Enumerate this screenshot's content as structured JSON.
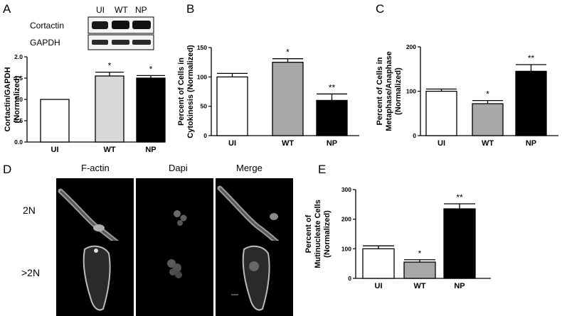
{
  "panels": {
    "A": {
      "letter": "A",
      "blot": {
        "lanes": [
          "UI",
          "WT",
          "NP"
        ],
        "bands": [
          "Cortactin",
          "GAPDH"
        ]
      },
      "chart": {
        "type": "bar",
        "categories": [
          "UI",
          "WT",
          "NP"
        ],
        "values": [
          1.0,
          1.55,
          1.5
        ],
        "errors": [
          0,
          0.09,
          0.06
        ],
        "fills": [
          "#ffffff",
          "#d8d8d8",
          "#000000"
        ],
        "significance": [
          "",
          "*",
          "*"
        ],
        "ylabel_lines": [
          "Cortactin/GAPDH",
          "(Normalized)"
        ],
        "ylim": [
          0,
          2.0
        ],
        "yticks": [
          "0.0",
          "0.5",
          "1.0",
          "1.5",
          "2.0"
        ]
      }
    },
    "B": {
      "letter": "B",
      "chart": {
        "type": "bar",
        "categories": [
          "UI",
          "WT",
          "NP"
        ],
        "values": [
          100,
          125,
          60
        ],
        "errors": [
          6,
          6,
          11
        ],
        "fills": [
          "#ffffff",
          "#a8a8a8",
          "#000000"
        ],
        "significance": [
          "",
          "*",
          "**"
        ],
        "ylabel_lines": [
          "Percent of Cells in",
          "Cytokinesis (Normalized)"
        ],
        "ylim": [
          0,
          150
        ],
        "yticks": [
          "0",
          "50",
          "100",
          "150"
        ]
      }
    },
    "C": {
      "letter": "C",
      "chart": {
        "type": "bar",
        "categories": [
          "UI",
          "WT",
          "NP"
        ],
        "values": [
          100,
          72,
          145
        ],
        "errors": [
          5,
          7,
          15
        ],
        "fills": [
          "#ffffff",
          "#a8a8a8",
          "#000000"
        ],
        "significance": [
          "",
          "*",
          "**"
        ],
        "ylabel_lines": [
          "Percent of Cells in",
          "Metaphase/Anaphase",
          "(Normalized)"
        ],
        "ylim": [
          0,
          200
        ],
        "yticks": [
          "0",
          "100",
          "200"
        ]
      }
    },
    "D": {
      "letter": "D",
      "columns": [
        "F-actin",
        "Dapi",
        "Merge"
      ],
      "rows": [
        "2N",
        ">2N"
      ]
    },
    "E": {
      "letter": "E",
      "chart": {
        "type": "bar",
        "categories": [
          "UI",
          "WT",
          "NP"
        ],
        "values": [
          100,
          55,
          235
        ],
        "errors": [
          10,
          8,
          17
        ],
        "fills": [
          "#ffffff",
          "#a8a8a8",
          "#000000"
        ],
        "significance": [
          "",
          "*",
          "**"
        ],
        "ylabel_lines": [
          "Percent of",
          "Mutinucleate Cells",
          "(Normalized)"
        ],
        "ylim": [
          0,
          300
        ],
        "yticks": [
          "0",
          "100",
          "200",
          "300"
        ]
      }
    }
  },
  "chart_data": [
    {
      "type": "bar",
      "panel": "A",
      "categories": [
        "UI",
        "WT",
        "NP"
      ],
      "values": [
        1.0,
        1.55,
        1.5
      ],
      "errors": [
        0,
        0.09,
        0.06
      ],
      "ylabel": "Cortactin/GAPDH (Normalized)",
      "ylim": [
        0,
        2.0
      ],
      "annotations": [
        "",
        "*",
        "*"
      ]
    },
    {
      "type": "bar",
      "panel": "B",
      "categories": [
        "UI",
        "WT",
        "NP"
      ],
      "values": [
        100,
        125,
        60
      ],
      "errors": [
        6,
        6,
        11
      ],
      "ylabel": "Percent of Cells in Cytokinesis (Normalized)",
      "ylim": [
        0,
        150
      ],
      "annotations": [
        "",
        "*",
        "**"
      ]
    },
    {
      "type": "bar",
      "panel": "C",
      "categories": [
        "UI",
        "WT",
        "NP"
      ],
      "values": [
        100,
        72,
        145
      ],
      "errors": [
        5,
        7,
        15
      ],
      "ylabel": "Percent of Cells in Metaphase/Anaphase (Normalized)",
      "ylim": [
        0,
        200
      ],
      "annotations": [
        "",
        "*",
        "**"
      ]
    },
    {
      "type": "bar",
      "panel": "E",
      "categories": [
        "UI",
        "WT",
        "NP"
      ],
      "values": [
        100,
        55,
        235
      ],
      "errors": [
        10,
        8,
        17
      ],
      "ylabel": "Percent of Mutinucleate Cells (Normalized)",
      "ylim": [
        0,
        300
      ],
      "annotations": [
        "",
        "*",
        "**"
      ]
    }
  ]
}
